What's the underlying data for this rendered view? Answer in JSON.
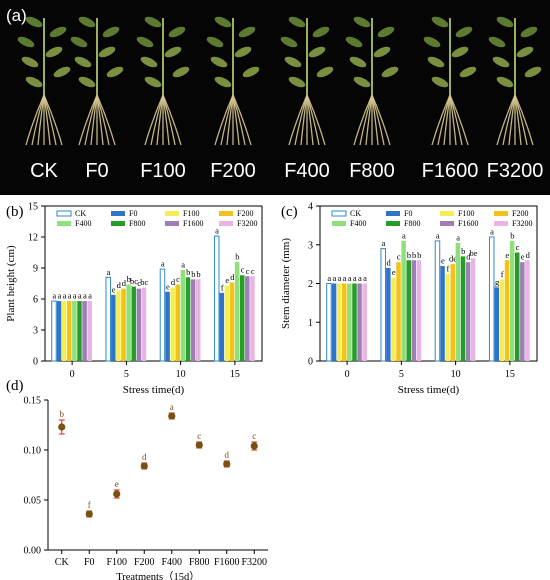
{
  "panel_a": {
    "label": "(a)",
    "plants": [
      "CK",
      "F0",
      "F100",
      "F200",
      "F400",
      "F800",
      "F1600",
      "F3200"
    ]
  },
  "colors": {
    "CK": "#ffffff",
    "F0": "#2f74c9",
    "F100": "#f4ee52",
    "F200": "#f2c21a",
    "F400": "#8fe07a",
    "F800": "#279c2b",
    "F1600": "#9e7fb3",
    "F3200": "#e9b3e6",
    "CK_stroke": "#2f89c8",
    "scatter_marker": "#7a4f12",
    "error_bar": "#d62b1a"
  },
  "chart_data": [
    {
      "panel": "(b)",
      "type": "bar",
      "xlabel": "Stress time(d)",
      "ylabel": "Plant height (cm)",
      "ylim": [
        0,
        15
      ],
      "yticks": [
        0,
        3,
        6,
        9,
        12,
        15
      ],
      "categories": [
        "0",
        "5",
        "10",
        "15"
      ],
      "legend_placement": "top",
      "legend_rows": [
        [
          "CK",
          "F0",
          "F100",
          "F200"
        ],
        [
          "F400",
          "F800",
          "F1600",
          "F3200"
        ]
      ],
      "series": [
        {
          "name": "CK",
          "values": [
            5.8,
            8.1,
            8.9,
            12.1
          ],
          "letters": [
            "a",
            "a",
            "a",
            "a"
          ]
        },
        {
          "name": "F0",
          "values": [
            5.8,
            6.4,
            6.7,
            6.6
          ],
          "letters": [
            "a",
            "e",
            "e",
            "f"
          ]
        },
        {
          "name": "F100",
          "values": [
            5.8,
            6.8,
            7.1,
            7.3
          ],
          "letters": [
            "a",
            "d",
            "d",
            "e"
          ]
        },
        {
          "name": "F200",
          "values": [
            5.8,
            7.0,
            7.4,
            7.6
          ],
          "letters": [
            "a",
            "d",
            "c",
            "d"
          ]
        },
        {
          "name": "F400",
          "values": [
            5.8,
            7.4,
            8.8,
            9.6
          ],
          "letters": [
            "a",
            "b",
            "a",
            "b"
          ]
        },
        {
          "name": "F800",
          "values": [
            5.8,
            7.2,
            8.1,
            8.3
          ],
          "letters": [
            "a",
            "bc",
            "b",
            "c"
          ]
        },
        {
          "name": "F1600",
          "values": [
            5.8,
            7.0,
            7.9,
            8.2
          ],
          "letters": [
            "a",
            "c",
            "b",
            "c"
          ]
        },
        {
          "name": "F3200",
          "values": [
            5.8,
            7.1,
            7.9,
            8.2
          ],
          "letters": [
            "a",
            "bc",
            "b",
            "c"
          ]
        }
      ]
    },
    {
      "panel": "(c)",
      "type": "bar",
      "xlabel": "Stress time(d)",
      "ylabel": "Stem diameter (mm)",
      "ylim": [
        0,
        4
      ],
      "yticks": [
        0,
        1,
        2,
        3,
        4
      ],
      "categories": [
        "0",
        "5",
        "10",
        "15"
      ],
      "legend_placement": "top",
      "legend_rows": [
        [
          "CK",
          "F0",
          "F100",
          "F200"
        ],
        [
          "F400",
          "F800",
          "F1600",
          "F3200"
        ]
      ],
      "series": [
        {
          "name": "CK",
          "values": [
            2.0,
            2.9,
            3.1,
            3.2
          ],
          "letters": [
            "a",
            "a",
            "a",
            "a"
          ]
        },
        {
          "name": "F0",
          "values": [
            2.0,
            2.4,
            2.45,
            1.9
          ],
          "letters": [
            "a",
            "d",
            "e",
            "g"
          ]
        },
        {
          "name": "F100",
          "values": [
            2.0,
            2.15,
            2.25,
            2.1
          ],
          "letters": [
            "a",
            "e",
            "f",
            "f"
          ]
        },
        {
          "name": "F200",
          "values": [
            2.0,
            2.55,
            2.5,
            2.6
          ],
          "letters": [
            "a",
            "c",
            "de",
            "e"
          ]
        },
        {
          "name": "F400",
          "values": [
            2.0,
            3.1,
            3.05,
            3.1
          ],
          "letters": [
            "a",
            "a",
            "a",
            "b"
          ]
        },
        {
          "name": "F800",
          "values": [
            2.0,
            2.6,
            2.7,
            2.8
          ],
          "letters": [
            "a",
            "b",
            "b",
            "c"
          ]
        },
        {
          "name": "F1600",
          "values": [
            2.0,
            2.6,
            2.55,
            2.55
          ],
          "letters": [
            "a",
            "b",
            "d",
            "e"
          ]
        },
        {
          "name": "F3200",
          "values": [
            2.0,
            2.6,
            2.65,
            2.6
          ],
          "letters": [
            "a",
            "b",
            "be",
            "d"
          ]
        }
      ]
    },
    {
      "panel": "(d)",
      "type": "scatter",
      "xlabel": "Treatments（15d）",
      "ylabel": "",
      "ylim": [
        0,
        0.15
      ],
      "yticks": [
        "0.00",
        "0.05",
        "0.10",
        "0.15"
      ],
      "categories": [
        "CK",
        "F0",
        "F100",
        "F200",
        "F400",
        "F800",
        "F1600",
        "F3200"
      ],
      "values": [
        0.123,
        0.036,
        0.056,
        0.084,
        0.134,
        0.105,
        0.086,
        0.104
      ],
      "errors": [
        0.007,
        0.003,
        0.004,
        0.003,
        0.003,
        0.003,
        0.003,
        0.004
      ],
      "letters": [
        "b",
        "f",
        "e",
        "d",
        "a",
        "c",
        "d",
        "c"
      ]
    }
  ]
}
